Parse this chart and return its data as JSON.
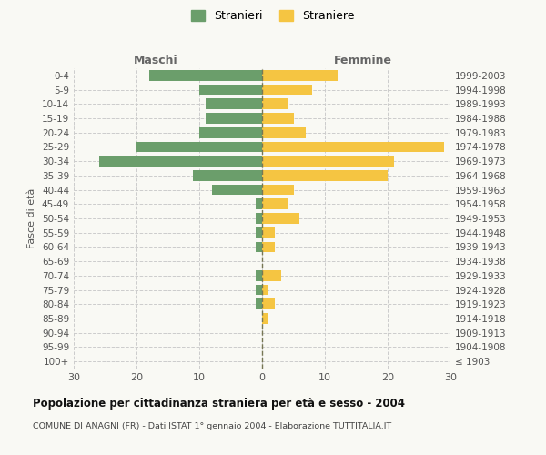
{
  "age_groups": [
    "100+",
    "95-99",
    "90-94",
    "85-89",
    "80-84",
    "75-79",
    "70-74",
    "65-69",
    "60-64",
    "55-59",
    "50-54",
    "45-49",
    "40-44",
    "35-39",
    "30-34",
    "25-29",
    "20-24",
    "15-19",
    "10-14",
    "5-9",
    "0-4"
  ],
  "birth_years": [
    "≤ 1903",
    "1904-1908",
    "1909-1913",
    "1914-1918",
    "1919-1923",
    "1924-1928",
    "1929-1933",
    "1934-1938",
    "1939-1943",
    "1944-1948",
    "1949-1953",
    "1954-1958",
    "1959-1963",
    "1964-1968",
    "1969-1973",
    "1974-1978",
    "1979-1983",
    "1984-1988",
    "1989-1993",
    "1994-1998",
    "1999-2003"
  ],
  "maschi": [
    0,
    0,
    0,
    0,
    1,
    1,
    1,
    0,
    1,
    1,
    1,
    1,
    8,
    11,
    26,
    20,
    10,
    9,
    9,
    10,
    18
  ],
  "femmine": [
    0,
    0,
    0,
    1,
    2,
    1,
    3,
    0,
    2,
    2,
    6,
    4,
    5,
    20,
    21,
    29,
    7,
    5,
    4,
    8,
    12
  ],
  "maschi_color": "#6b9e6b",
  "femmine_color": "#f5c542",
  "background_color": "#f9f9f4",
  "grid_color": "#cccccc",
  "title": "Popolazione per cittadinanza straniera per età e sesso - 2004",
  "subtitle": "COMUNE DI ANAGNI (FR) - Dati ISTAT 1° gennaio 2004 - Elaborazione TUTTITALIA.IT",
  "ylabel_left": "Fasce di età",
  "xlabel_maschi": "Maschi",
  "xlabel_femmine": "Femmine",
  "legend_maschi": "Stranieri",
  "legend_femmine": "Straniere",
  "xlim": 30,
  "bar_height": 0.75
}
